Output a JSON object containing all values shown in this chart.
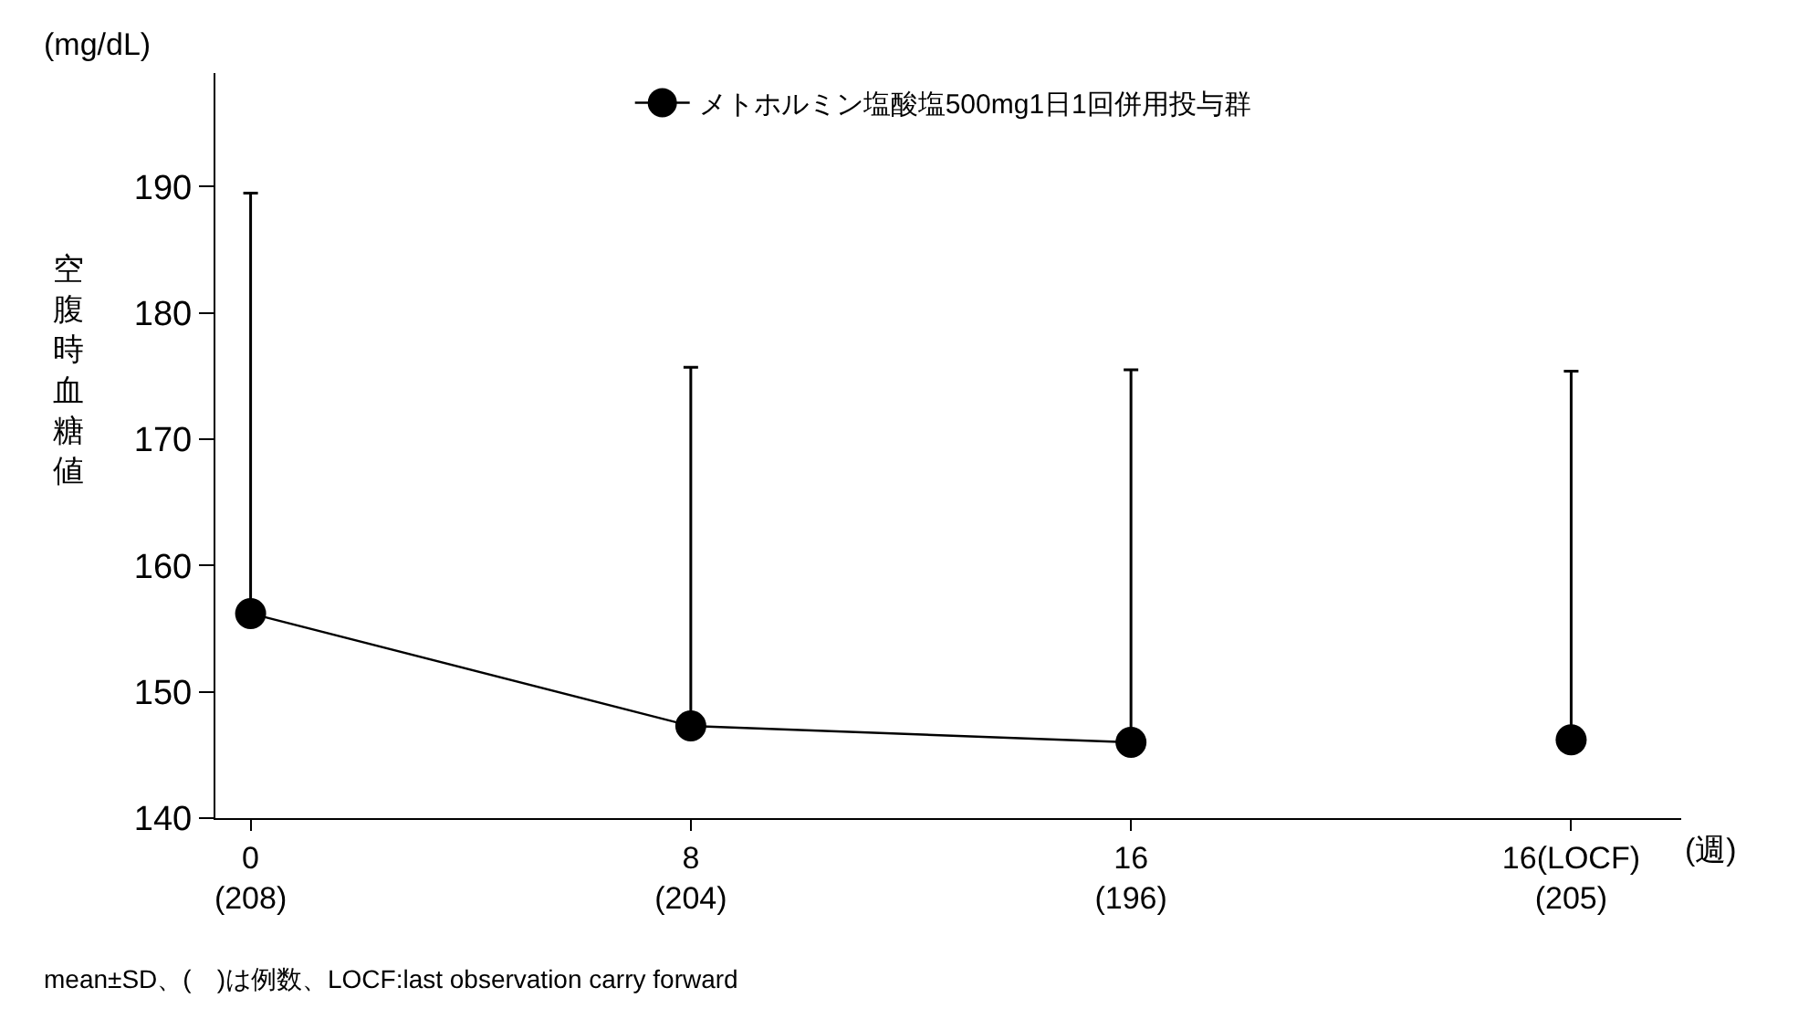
{
  "chart_data": {
    "type": "line",
    "ylabel": "空腹時血糖値",
    "xlabel": "(週)",
    "annotations": [
      "(mg/dL)",
      "mean±SD、(　)は例数、LOCF:last observation carry forward"
    ],
    "categories": [
      "0\n(208)",
      "8\n(204)",
      "16\n(196)",
      "16(LOCF)\n(205)"
    ],
    "series": [
      {
        "name": "メトホルミン塩酸塩500mg1日1回併用投与群",
        "color": "#000000",
        "values": [
          156.2,
          147.3,
          146.0,
          null
        ],
        "errors": [
          [
            156.2,
            189.5
          ],
          [
            147.3,
            175.7
          ],
          [
            146.0,
            175.5
          ],
          null
        ]
      },
      {
        "type": "scatter",
        "color": "#000000",
        "values": [
          null,
          null,
          null,
          146.2
        ],
        "errors": [
          null,
          null,
          null,
          [
            146.2,
            175.4
          ]
        ]
      }
    ],
    "ylim": [
      140,
      199
    ],
    "yticks": [
      140,
      150,
      160,
      170,
      180,
      190
    ],
    "grid": false,
    "legend": "top",
    "marker": "circle",
    "line_style": "solid"
  }
}
